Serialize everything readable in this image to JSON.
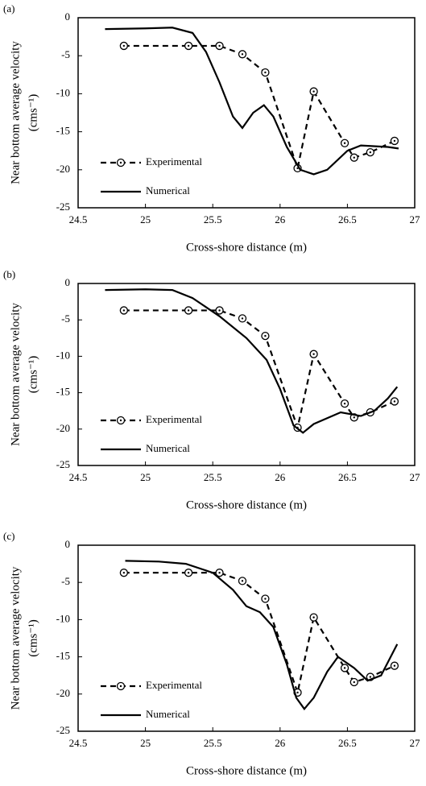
{
  "chart_data": [
    {
      "type": "line",
      "panel_label": "(a)",
      "ylabel": [
        "Near bottom average velocity",
        "(cms⁻¹)"
      ],
      "xlabel": "Cross-shore distance (m)",
      "xlim": [
        24.5,
        27
      ],
      "ylim": [
        -25,
        0
      ],
      "xticks": [
        24.5,
        25,
        25.5,
        26,
        26.5,
        27
      ],
      "yticks": [
        0,
        -5,
        -10,
        -15,
        -20,
        -25
      ],
      "grid": false,
      "legend": "lower left",
      "series": [
        {
          "name": "Experimental",
          "color": "#000000",
          "style": "dashed",
          "marker": "circle",
          "x": [
            24.84,
            25.32,
            25.55,
            25.72,
            25.89,
            26.13,
            26.25,
            26.48,
            26.55,
            26.67,
            26.85
          ],
          "values": [
            -3.7,
            -3.7,
            -3.7,
            -4.8,
            -7.2,
            -19.8,
            -9.7,
            -16.5,
            -18.4,
            -17.7,
            -16.2
          ]
        },
        {
          "name": "Numerical",
          "color": "#000000",
          "style": "solid",
          "x": [
            24.7,
            25.0,
            25.2,
            25.35,
            25.45,
            25.55,
            25.65,
            25.72,
            25.8,
            25.88,
            25.95,
            26.05,
            26.15,
            26.25,
            26.35,
            26.5,
            26.6,
            26.8,
            26.88
          ],
          "values": [
            -1.5,
            -1.4,
            -1.3,
            -2,
            -4.5,
            -8.5,
            -13,
            -14.5,
            -12.5,
            -11.5,
            -13,
            -17,
            -20,
            -20.6,
            -20,
            -17.5,
            -16.8,
            -17,
            -17.2
          ]
        }
      ]
    },
    {
      "type": "line",
      "panel_label": "(b)",
      "ylabel": [
        "Near bottom average velocity",
        "(cms⁻¹)"
      ],
      "xlabel": "Cross-shore distance (m)",
      "xlim": [
        24.5,
        27
      ],
      "ylim": [
        -25,
        0
      ],
      "xticks": [
        24.5,
        25,
        25.5,
        26,
        26.5,
        27
      ],
      "yticks": [
        0,
        -5,
        -10,
        -15,
        -20,
        -25
      ],
      "grid": false,
      "legend": "lower left",
      "series": [
        {
          "name": "Experimental",
          "color": "#000000",
          "style": "dashed",
          "marker": "circle",
          "x": [
            24.84,
            25.32,
            25.55,
            25.72,
            25.89,
            26.13,
            26.25,
            26.48,
            26.55,
            26.67,
            26.85
          ],
          "values": [
            -3.7,
            -3.7,
            -3.7,
            -4.8,
            -7.2,
            -19.8,
            -9.7,
            -16.5,
            -18.4,
            -17.7,
            -16.2
          ]
        },
        {
          "name": "Numerical",
          "color": "#000000",
          "style": "solid",
          "x": [
            24.7,
            25.0,
            25.2,
            25.35,
            25.55,
            25.75,
            25.9,
            26.0,
            26.1,
            26.17,
            26.25,
            26.45,
            26.6,
            26.7,
            26.8,
            26.87
          ],
          "values": [
            -0.9,
            -0.8,
            -0.9,
            -2,
            -4.5,
            -7.5,
            -10.5,
            -14.5,
            -19.5,
            -20.5,
            -19.3,
            -17.7,
            -18.2,
            -17.5,
            -15.8,
            -14.2
          ]
        }
      ]
    },
    {
      "type": "line",
      "panel_label": "(c)",
      "ylabel": [
        "Near bottom average velocity",
        "(cms⁻¹)"
      ],
      "xlabel": "Cross-shore distance (m)",
      "xlim": [
        24.5,
        27
      ],
      "ylim": [
        -25,
        0
      ],
      "xticks": [
        24.5,
        25,
        25.5,
        26,
        26.5,
        27
      ],
      "yticks": [
        0,
        -5,
        -10,
        -15,
        -20,
        -25
      ],
      "grid": false,
      "legend": "lower left",
      "series": [
        {
          "name": "Experimental",
          "color": "#000000",
          "style": "dashed",
          "marker": "circle",
          "x": [
            24.84,
            25.32,
            25.55,
            25.72,
            25.89,
            26.13,
            26.25,
            26.48,
            26.55,
            26.67,
            26.85
          ],
          "values": [
            -3.7,
            -3.7,
            -3.7,
            -4.8,
            -7.2,
            -19.8,
            -9.7,
            -16.5,
            -18.4,
            -17.7,
            -16.2
          ]
        },
        {
          "name": "Numerical",
          "color": "#000000",
          "style": "solid",
          "x": [
            24.85,
            25.1,
            25.3,
            25.5,
            25.65,
            25.75,
            25.85,
            25.95,
            26.05,
            26.12,
            26.18,
            26.25,
            26.35,
            26.43,
            26.55,
            26.65,
            26.75,
            26.87
          ],
          "values": [
            -2.1,
            -2.2,
            -2.5,
            -3.7,
            -6,
            -8.2,
            -9,
            -11,
            -16,
            -20.5,
            -22,
            -20.5,
            -17,
            -15,
            -16.5,
            -18.2,
            -17.5,
            -13.3
          ]
        }
      ]
    }
  ]
}
